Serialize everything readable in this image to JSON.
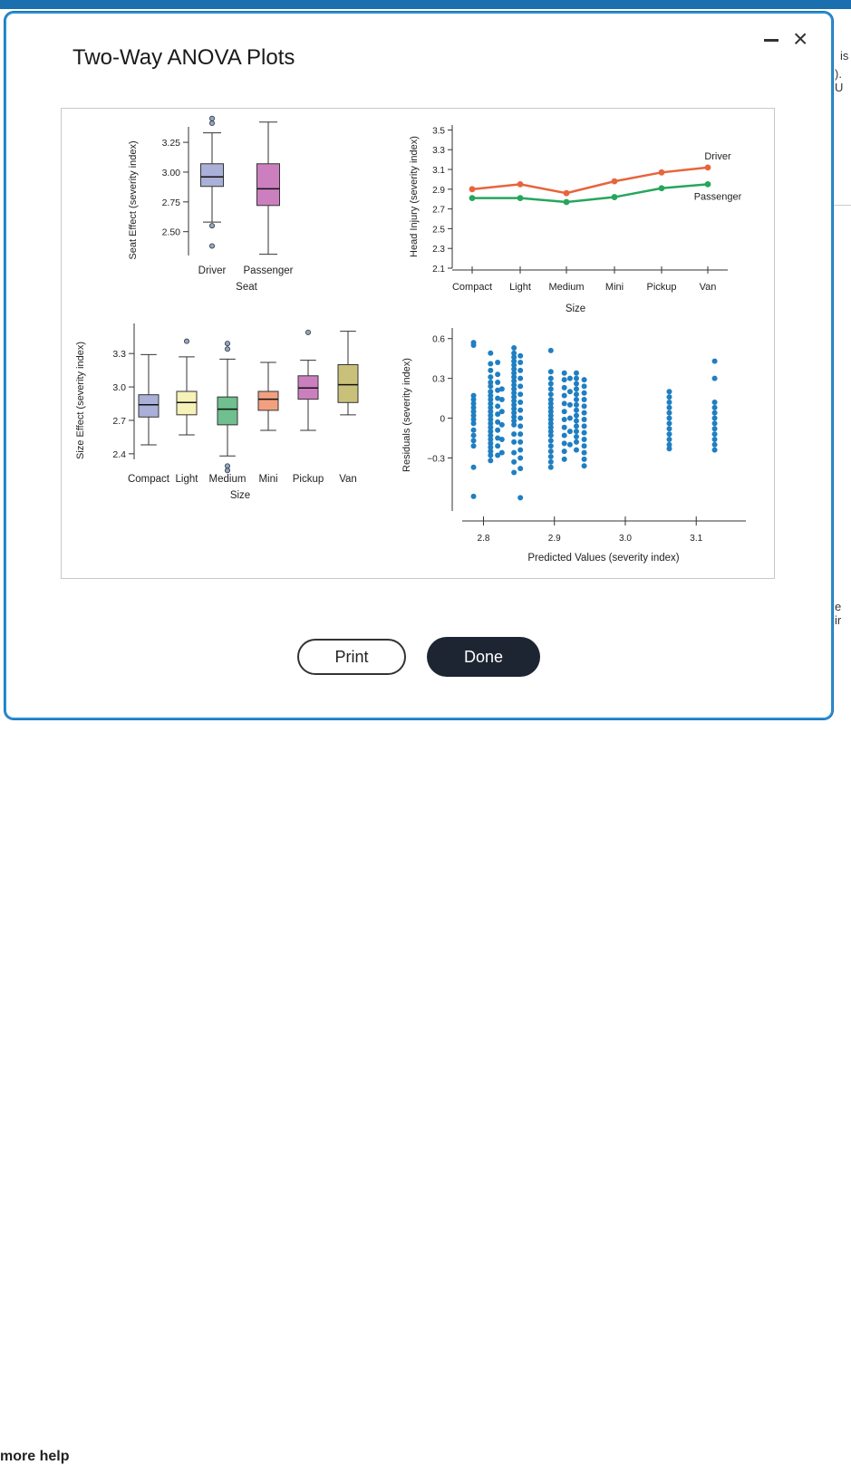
{
  "dialog": {
    "title": "Two-Way ANOVA Plots",
    "print_label": "Print",
    "done_label": "Done",
    "minimize_icon": "minimize-icon",
    "close_icon": "close-icon"
  },
  "background": {
    "frag_right_1": "is",
    "frag_right_2": "). U",
    "frag_right_3": "e ir",
    "more_help": "more help"
  },
  "colors": {
    "driver": "#e8643c",
    "passenger": "#26a65b",
    "residuals": "#1f7fc2",
    "box_driver": "#aab0d8",
    "box_passenger": "#cc7fbf",
    "box_compact": "#aab0d8",
    "box_light": "#f6f2b8",
    "box_medium": "#6fbf8f",
    "box_mini": "#f2a080",
    "box_pickup": "#cc7fbf",
    "box_van": "#c9c07a"
  },
  "chart_data": [
    {
      "type": "box",
      "id": "seat",
      "ylabel": "Seat Effect (severity index)",
      "xlabel": "Seat",
      "yticks": [
        2.5,
        2.75,
        3.0,
        3.25
      ],
      "ytick_labels": [
        "2.50",
        "2.75",
        "3.00",
        "3.25"
      ],
      "ylim": [
        2.3,
        3.38
      ],
      "categories": [
        "Driver",
        "Passenger"
      ],
      "boxes": [
        {
          "name": "Driver",
          "min": 2.58,
          "q1": 2.88,
          "median": 2.96,
          "q3": 3.07,
          "max": 3.33,
          "outliers": [
            3.41,
            3.45,
            2.55,
            2.38
          ]
        },
        {
          "name": "Passenger",
          "min": 2.31,
          "q1": 2.72,
          "median": 2.86,
          "q3": 3.07,
          "max": 3.42,
          "outliers": []
        }
      ]
    },
    {
      "type": "line",
      "id": "interaction",
      "ylabel": "Head Injury (severity index)",
      "xlabel": "Size",
      "categories": [
        "Compact",
        "Light",
        "Medium",
        "Mini",
        "Pickup",
        "Van"
      ],
      "yticks": [
        2.1,
        2.3,
        2.5,
        2.7,
        2.9,
        3.1,
        3.3,
        3.5
      ],
      "ylim": [
        2.1,
        3.55
      ],
      "series": [
        {
          "name": "Driver",
          "values": [
            2.9,
            2.95,
            2.86,
            2.98,
            3.07,
            3.12
          ]
        },
        {
          "name": "Passenger",
          "values": [
            2.81,
            2.81,
            2.77,
            2.82,
            2.91,
            2.95
          ]
        }
      ]
    },
    {
      "type": "box",
      "id": "size",
      "ylabel": "Size Effect (severity index)",
      "xlabel": "Size",
      "yticks": [
        2.4,
        2.7,
        3.0,
        3.3
      ],
      "ytick_labels": [
        "2.4",
        "2.7",
        "3.0",
        "3.3"
      ],
      "ylim": [
        2.35,
        3.57
      ],
      "categories": [
        "Compact",
        "Light",
        "Medium",
        "Mini",
        "Pickup",
        "Van"
      ],
      "boxes": [
        {
          "name": "Compact",
          "min": 2.48,
          "q1": 2.73,
          "median": 2.84,
          "q3": 2.93,
          "max": 3.29,
          "outliers": []
        },
        {
          "name": "Light",
          "min": 2.57,
          "q1": 2.75,
          "median": 2.86,
          "q3": 2.96,
          "max": 3.27,
          "outliers": [
            3.41
          ]
        },
        {
          "name": "Medium",
          "min": 2.38,
          "q1": 2.66,
          "median": 2.8,
          "q3": 2.91,
          "max": 3.25,
          "outliers": [
            3.39,
            3.34,
            2.29,
            2.25
          ]
        },
        {
          "name": "Mini",
          "min": 2.61,
          "q1": 2.79,
          "median": 2.89,
          "q3": 2.96,
          "max": 3.22,
          "outliers": []
        },
        {
          "name": "Pickup",
          "min": 2.61,
          "q1": 2.89,
          "median": 2.99,
          "q3": 3.1,
          "max": 3.24,
          "outliers": [
            3.49
          ]
        },
        {
          "name": "Van",
          "min": 2.75,
          "q1": 2.86,
          "median": 3.02,
          "q3": 3.2,
          "max": 3.5,
          "outliers": []
        }
      ]
    },
    {
      "type": "scatter",
      "id": "residuals",
      "ylabel": "Residuals (severity index)",
      "xlabel": "Predicted Values (severity index)",
      "xticks": [
        2.8,
        2.9,
        3.0,
        3.1
      ],
      "xtick_labels": [
        "2.8",
        "2.9",
        "3.0",
        "3.1"
      ],
      "yticks": [
        -0.3,
        0,
        0.3,
        0.6
      ],
      "ytick_labels": [
        "−0.3",
        "0",
        "0.3",
        "0.6"
      ],
      "xlim": [
        2.77,
        3.17
      ],
      "ylim": [
        -0.7,
        0.68
      ],
      "columns": [
        {
          "x": 2.786,
          "values": [
            0.57,
            0.55,
            0.17,
            0.14,
            0.11,
            0.08,
            0.05,
            0.02,
            -0.01,
            -0.04,
            -0.09,
            -0.13,
            -0.17,
            -0.21,
            -0.37,
            -0.59
          ]
        },
        {
          "x": 2.81,
          "values": [
            0.49,
            0.41,
            0.36,
            0.31,
            0.27,
            0.24,
            0.2,
            0.17,
            0.14,
            0.11,
            0.08,
            0.05,
            0.02,
            -0.01,
            -0.04,
            -0.07,
            -0.1,
            -0.13,
            -0.16,
            -0.19,
            -0.22,
            -0.25,
            -0.28,
            -0.32
          ]
        },
        {
          "x": 2.82,
          "values": [
            0.42,
            0.33,
            0.27,
            0.21,
            0.15,
            0.09,
            0.03,
            -0.03,
            -0.09,
            -0.15,
            -0.21,
            -0.28
          ]
        },
        {
          "x": 2.826,
          "values": [
            0.22,
            0.14,
            0.05,
            -0.05,
            -0.16,
            -0.26
          ]
        },
        {
          "x": 2.843,
          "values": [
            0.53,
            0.49,
            0.46,
            0.43,
            0.4,
            0.37,
            0.34,
            0.31,
            0.28,
            0.25,
            0.22,
            0.19,
            0.16,
            0.13,
            0.1,
            0.07,
            0.04,
            0.01,
            -0.02,
            -0.05,
            -0.12,
            -0.18,
            -0.26,
            -0.33,
            -0.41
          ]
        },
        {
          "x": 2.852,
          "values": [
            0.47,
            0.42,
            0.36,
            0.3,
            0.24,
            0.18,
            0.12,
            0.06,
            0.0,
            -0.06,
            -0.12,
            -0.18,
            -0.24,
            -0.3,
            -0.38,
            -0.6
          ]
        },
        {
          "x": 2.895,
          "values": [
            0.51,
            0.35,
            0.3,
            0.26,
            0.22,
            0.18,
            0.14,
            0.11,
            0.08,
            0.05,
            0.02,
            -0.01,
            -0.04,
            -0.07,
            -0.1,
            -0.13,
            -0.17,
            -0.21,
            -0.25,
            -0.29,
            -0.33,
            -0.37
          ]
        },
        {
          "x": 2.914,
          "values": [
            0.34,
            0.29,
            0.23,
            0.17,
            0.11,
            0.05,
            -0.01,
            -0.07,
            -0.13,
            -0.19,
            -0.25,
            -0.31
          ]
        },
        {
          "x": 2.922,
          "values": [
            0.3,
            0.2,
            0.1,
            0.0,
            -0.1,
            -0.2
          ]
        },
        {
          "x": 2.931,
          "values": [
            0.34,
            0.3,
            0.26,
            0.22,
            0.18,
            0.14,
            0.1,
            0.06,
            0.02,
            -0.02,
            -0.06,
            -0.1,
            -0.14,
            -0.18,
            -0.24
          ]
        },
        {
          "x": 2.942,
          "values": [
            0.29,
            0.24,
            0.19,
            0.14,
            0.09,
            0.04,
            -0.01,
            -0.06,
            -0.11,
            -0.16,
            -0.21,
            -0.26,
            -0.31,
            -0.36
          ]
        },
        {
          "x": 3.062,
          "values": [
            0.2,
            0.16,
            0.12,
            0.08,
            0.04,
            0.0,
            -0.04,
            -0.08,
            -0.12,
            -0.16,
            -0.2,
            -0.23
          ]
        },
        {
          "x": 3.126,
          "values": [
            0.43,
            0.3,
            0.12,
            0.08,
            0.04,
            0.0,
            -0.04,
            -0.08,
            -0.12,
            -0.16,
            -0.2,
            -0.24
          ]
        }
      ]
    }
  ]
}
